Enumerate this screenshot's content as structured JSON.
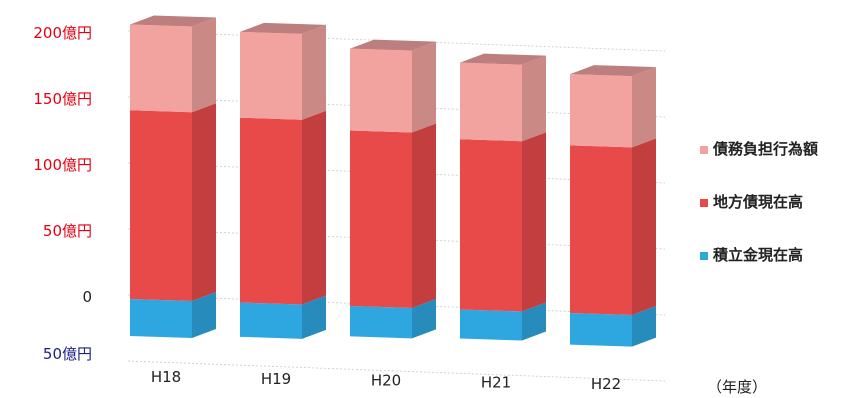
{
  "chart_data": {
    "type": "bar",
    "stacked": true,
    "style": "3d-column",
    "categories": [
      "H18",
      "H19",
      "H20",
      "H21",
      "H22"
    ],
    "series": [
      {
        "name": "積立金現在高",
        "values": [
          -28,
          -26,
          -23,
          -22,
          -24
        ],
        "color": "#2ea7e0",
        "placement": "below-zero"
      },
      {
        "name": "地方債現在高",
        "values": [
          143,
          140,
          133,
          129,
          127
        ],
        "color": "#e84a4a"
      },
      {
        "name": "債務負担行為額",
        "values": [
          65,
          65,
          62,
          58,
          54
        ],
        "color": "#f2a3a0"
      }
    ],
    "y_ticks": [
      {
        "value": 200,
        "label": "200億円",
        "color": "#e60012"
      },
      {
        "value": 150,
        "label": "150億円",
        "color": "#e60012"
      },
      {
        "value": 100,
        "label": "100億円",
        "color": "#e60012"
      },
      {
        "value": 50,
        "label": "50億円",
        "color": "#e60012"
      },
      {
        "value": 0,
        "label": "0",
        "color": "#222222"
      },
      {
        "value": -50,
        "label": "50億円",
        "color": "#1d2088"
      }
    ],
    "ylim": [
      -50,
      200
    ],
    "xlabel_unit": "（年度）",
    "legend_position": "right",
    "grid": "dotted-horizontal"
  }
}
